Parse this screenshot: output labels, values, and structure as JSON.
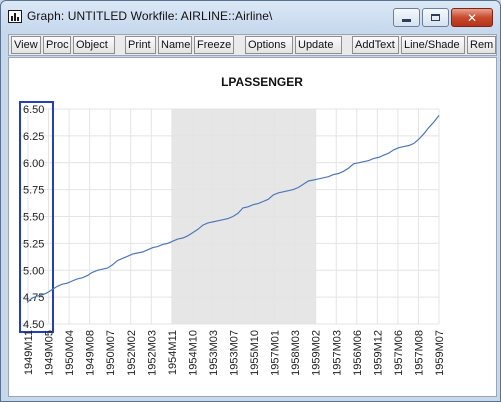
{
  "window": {
    "title": "Graph: UNTITLED   Workfile: AIRLINE::Airline\\",
    "controls": {
      "minimize": "minimize-icon",
      "maximize": "maximize-icon",
      "close": "close-icon"
    }
  },
  "toolbar": {
    "buttons": [
      "View",
      "Proc",
      "Object",
      "Print",
      "Name",
      "Freeze",
      "Options",
      "Update",
      "AddText",
      "Line/Shade",
      "Rem"
    ]
  },
  "chart_data": {
    "type": "line",
    "title": "LPASSENGER",
    "xlabel": "",
    "ylabel": "",
    "ylim": [
      4.5,
      6.5
    ],
    "y_ticks": [
      "6.50",
      "6.25",
      "6.00",
      "5.75",
      "5.50",
      "5.25",
      "5.00",
      "4.75",
      "4.50"
    ],
    "x_ticks": [
      "1949M11",
      "1949M05",
      "1950M04",
      "1949M08",
      "1950M07",
      "1952M02",
      "1952M03",
      "1954M11",
      "1954M10",
      "1953M03",
      "1953M07",
      "1955M10",
      "1957M01",
      "1958M03",
      "1959M02",
      "1957M03",
      "1956M06",
      "1959M12",
      "1957M06",
      "1957M08",
      "1959M07"
    ],
    "shaded_region": {
      "from_tick": "1954M11",
      "to_tick": "1959M02",
      "color": "#e6e6e6"
    },
    "grid": true,
    "series": [
      {
        "color": "#4f78b8",
        "values": [
          4.7,
          4.74,
          4.76,
          4.77,
          4.79,
          4.82,
          4.85,
          4.87,
          4.88,
          4.9,
          4.92,
          4.93,
          4.95,
          4.98,
          5.0,
          5.01,
          5.02,
          5.05,
          5.09,
          5.11,
          5.13,
          5.15,
          5.16,
          5.17,
          5.19,
          5.21,
          5.22,
          5.24,
          5.25,
          5.27,
          5.29,
          5.3,
          5.32,
          5.35,
          5.38,
          5.42,
          5.44,
          5.45,
          5.46,
          5.47,
          5.48,
          5.5,
          5.53,
          5.58,
          5.59,
          5.61,
          5.62,
          5.64,
          5.66,
          5.7,
          5.72,
          5.73,
          5.74,
          5.75,
          5.77,
          5.8,
          5.83,
          5.84,
          5.85,
          5.86,
          5.87,
          5.89,
          5.9,
          5.92,
          5.95,
          5.99,
          6.0,
          6.01,
          6.02,
          6.04,
          6.05,
          6.07,
          6.09,
          6.12,
          6.14,
          6.15,
          6.16,
          6.18,
          6.22,
          6.27,
          6.33,
          6.38,
          6.44
        ]
      }
    ]
  }
}
